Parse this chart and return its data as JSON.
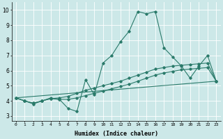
{
  "xlabel": "Humidex (Indice chaleur)",
  "bg_color": "#cce8e8",
  "grid_color": "#ffffff",
  "line_color": "#2a7a6a",
  "xlim": [
    -0.5,
    23.5
  ],
  "ylim": [
    2.7,
    10.5
  ],
  "yticks": [
    3,
    4,
    5,
    6,
    7,
    8,
    9,
    10
  ],
  "xticks": [
    0,
    1,
    2,
    3,
    4,
    5,
    6,
    7,
    8,
    9,
    10,
    11,
    12,
    13,
    14,
    15,
    16,
    17,
    18,
    19,
    20,
    21,
    22,
    23
  ],
  "lines": [
    {
      "x": [
        0,
        1,
        2,
        3,
        4,
        5,
        6,
        7,
        8,
        9,
        10,
        11,
        12,
        13,
        14,
        15,
        16,
        17,
        18,
        19,
        20,
        21,
        22,
        23
      ],
      "y": [
        4.2,
        4.0,
        3.8,
        4.0,
        4.2,
        4.1,
        3.5,
        3.3,
        5.4,
        4.4,
        6.5,
        7.0,
        7.9,
        8.6,
        9.9,
        9.75,
        9.9,
        7.5,
        6.9,
        6.3,
        5.5,
        6.3,
        7.0,
        5.3
      ]
    },
    {
      "x": [
        0,
        1,
        2,
        3,
        4,
        5,
        6,
        7,
        8,
        9,
        10,
        11,
        12,
        13,
        14,
        15,
        16,
        17,
        18,
        19,
        20,
        21,
        22,
        23
      ],
      "y": [
        4.2,
        4.0,
        3.85,
        4.0,
        4.15,
        4.2,
        4.3,
        4.5,
        4.7,
        4.85,
        5.0,
        5.15,
        5.3,
        5.5,
        5.7,
        5.9,
        6.1,
        6.2,
        6.3,
        6.35,
        6.4,
        6.45,
        6.5,
        5.3
      ]
    },
    {
      "x": [
        0,
        1,
        2,
        3,
        4,
        5,
        6,
        7,
        8,
        9,
        10,
        11,
        12,
        13,
        14,
        15,
        16,
        17,
        18,
        19,
        20,
        21,
        22,
        23
      ],
      "y": [
        4.2,
        4.0,
        3.85,
        4.0,
        4.15,
        4.1,
        4.1,
        4.2,
        4.35,
        4.5,
        4.65,
        4.8,
        4.95,
        5.1,
        5.3,
        5.5,
        5.7,
        5.85,
        5.95,
        6.05,
        6.1,
        6.15,
        6.2,
        5.3
      ]
    },
    {
      "x": [
        0,
        23
      ],
      "y": [
        4.2,
        5.3
      ]
    }
  ]
}
